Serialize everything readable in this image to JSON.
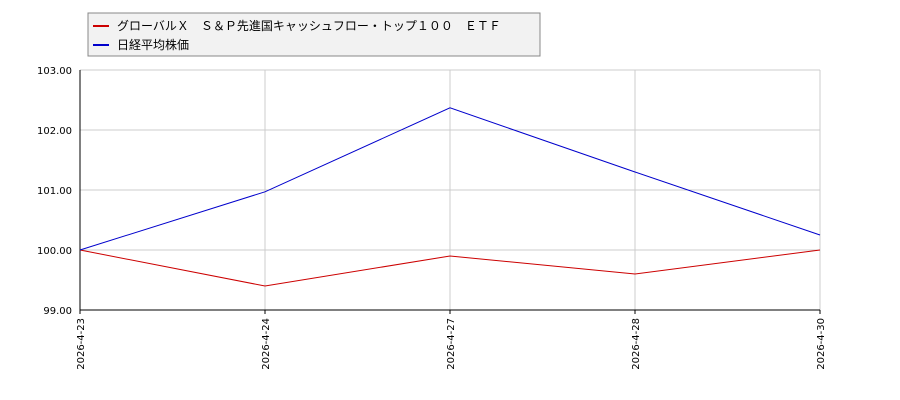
{
  "chart_data": {
    "type": "line",
    "title": "",
    "xlabel": "",
    "ylabel": "",
    "categories": [
      "2026-4-23",
      "2026-4-24",
      "2026-4-27",
      "2026-4-28",
      "2026-4-30"
    ],
    "ylim": [
      99.0,
      103.0
    ],
    "yticks": [
      "99.00",
      "100.00",
      "101.00",
      "102.00",
      "103.00"
    ],
    "grid": true,
    "legend_position": "top-left",
    "series": [
      {
        "name": "グローバルＸ　Ｓ＆Ｐ先進国キャッシュフロー・トップ１００　ＥＴＦ",
        "color": "#cc0000",
        "values": [
          100.0,
          99.4,
          99.9,
          99.6,
          100.0
        ]
      },
      {
        "name": "日経平均株価",
        "color": "#0000cc",
        "values": [
          100.0,
          100.97,
          102.37,
          101.3,
          100.25
        ]
      }
    ]
  }
}
